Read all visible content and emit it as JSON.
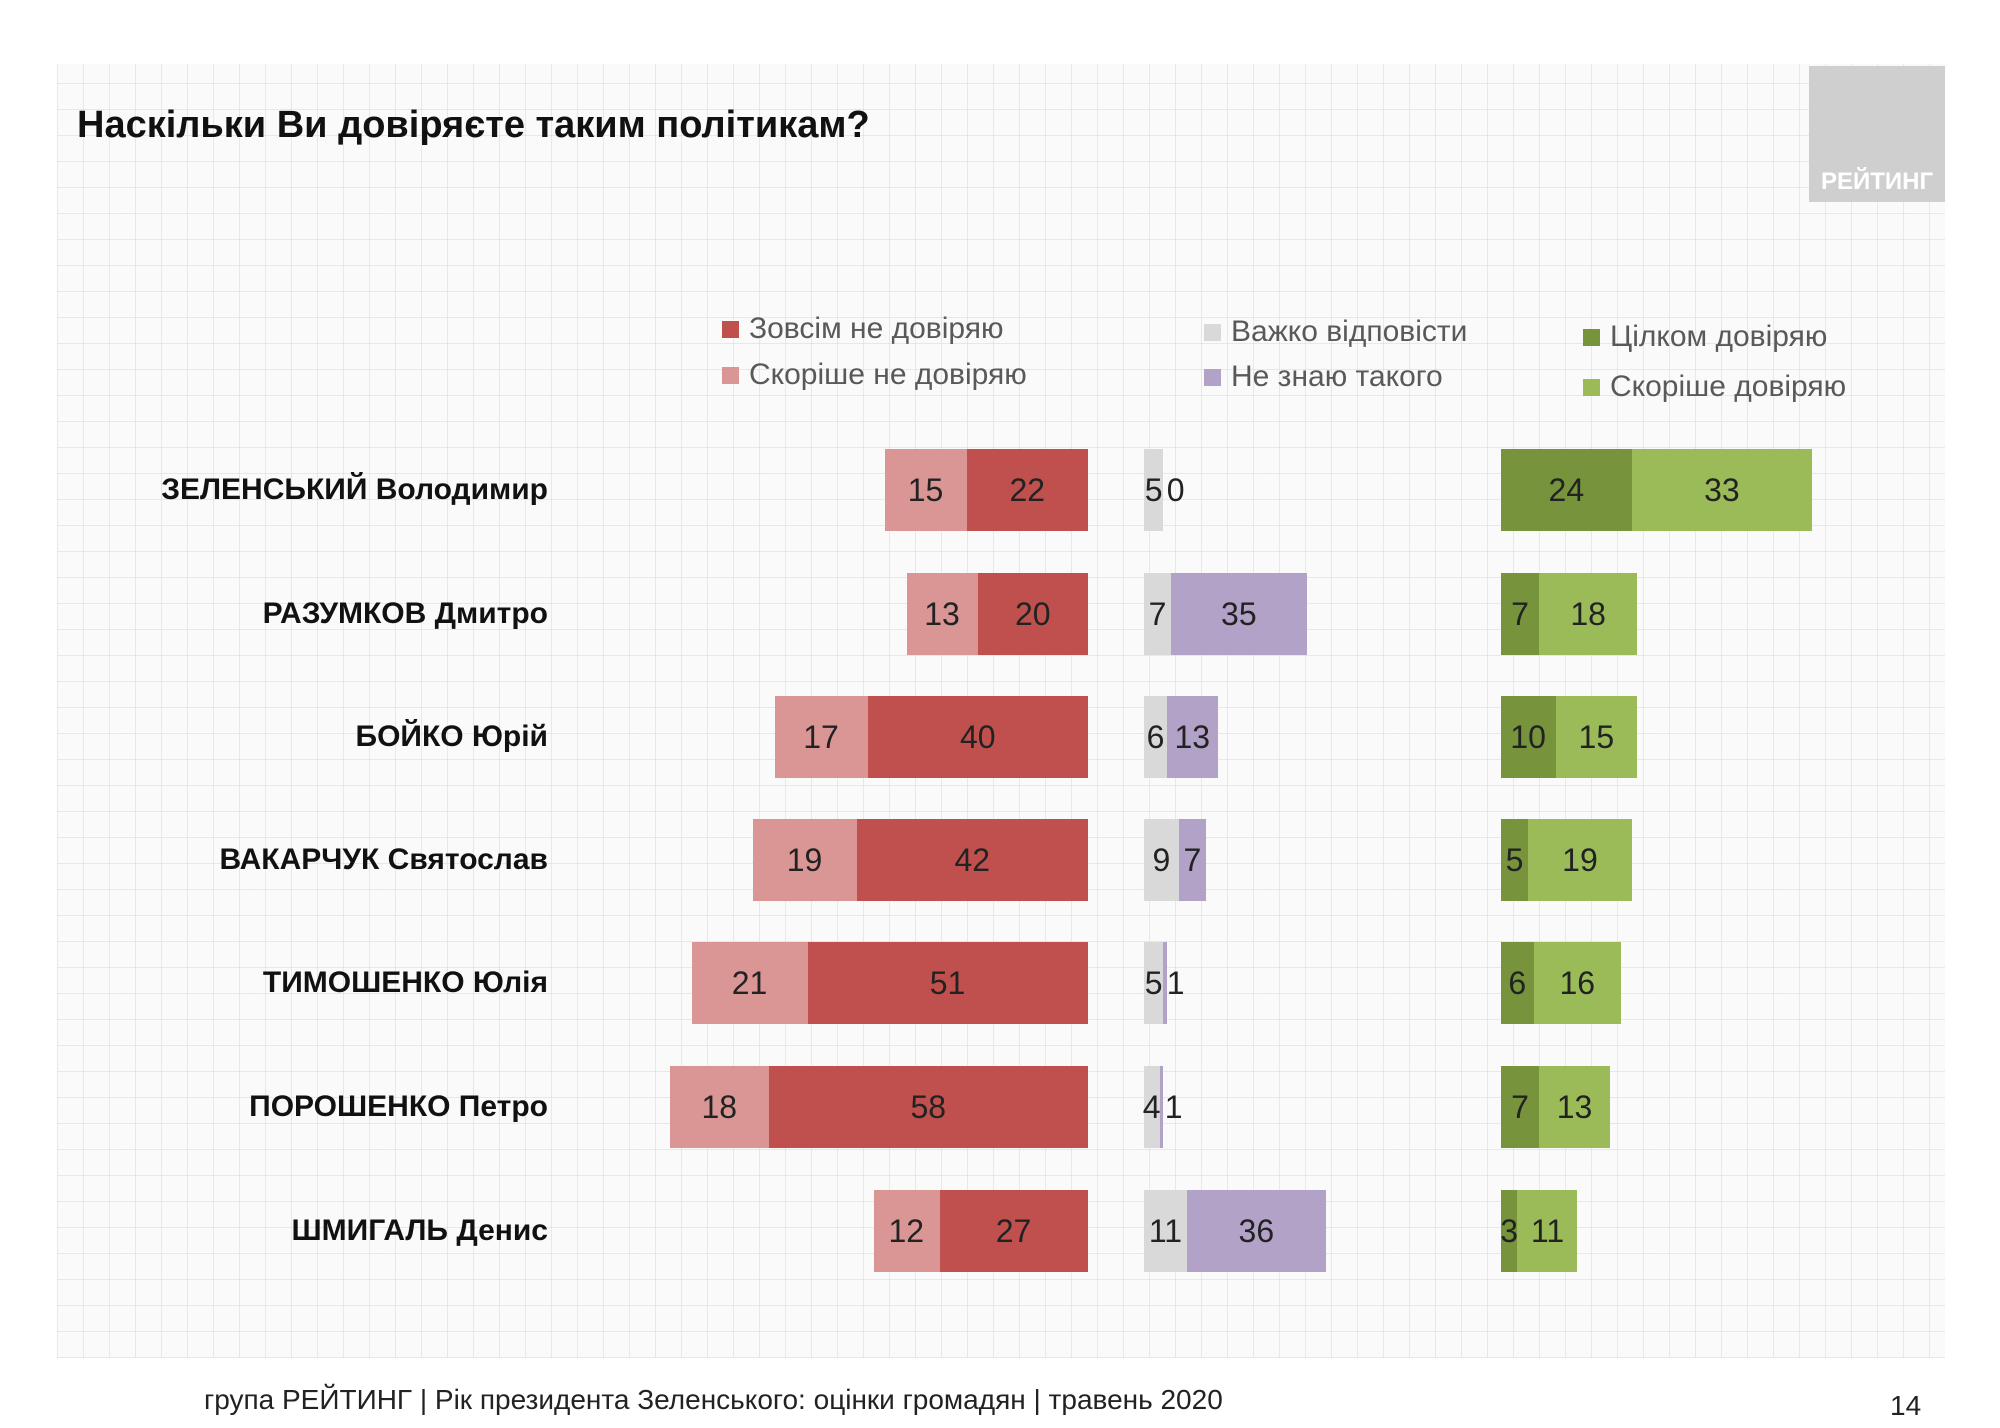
{
  "title": "Наскільки Ви довіряєте таким політикам?",
  "logo_text": "РЕЙТИНГ",
  "footer": "група РЕЙТИНГ |  Рік президента Зеленського: оцінки громадян | травень 2020",
  "page_number": "14",
  "chart_data": {
    "type": "bar",
    "orientation": "horizontal-stacked-diverging",
    "categories": [
      "ЗЕЛЕНСЬКИЙ Володимир",
      "РАЗУМКОВ Дмитро",
      "БОЙКО Юрій",
      "ВАКАРЧУК Святослав",
      "ТИМОШЕНКО Юлія",
      "ПОРОШЕНКО Петро",
      "ШМИГАЛЬ Денис"
    ],
    "series": [
      {
        "name": "Зовсім не довіряю",
        "group": "distrust",
        "color": "#c0504d",
        "values": [
          22,
          20,
          40,
          42,
          51,
          58,
          27
        ]
      },
      {
        "name": "Скоріше не довіряю",
        "group": "distrust",
        "color": "#d99694",
        "values": [
          15,
          13,
          17,
          19,
          21,
          18,
          12
        ]
      },
      {
        "name": "Важко відповісти",
        "group": "neutral",
        "color": "#d9d9d9",
        "values": [
          5,
          7,
          6,
          9,
          5,
          4,
          11
        ]
      },
      {
        "name": "Не знаю такого",
        "group": "neutral",
        "color": "#b3a2c7",
        "values": [
          0,
          35,
          13,
          7,
          1,
          1,
          36
        ]
      },
      {
        "name": "Цілком довіряю",
        "group": "trust",
        "color": "#77933c",
        "values": [
          24,
          7,
          10,
          5,
          6,
          7,
          3
        ]
      },
      {
        "name": "Скоріше довіряю",
        "group": "trust",
        "color": "#9bbb59",
        "values": [
          33,
          18,
          15,
          19,
          16,
          13,
          11
        ]
      }
    ],
    "grid": false,
    "legend": "top"
  }
}
